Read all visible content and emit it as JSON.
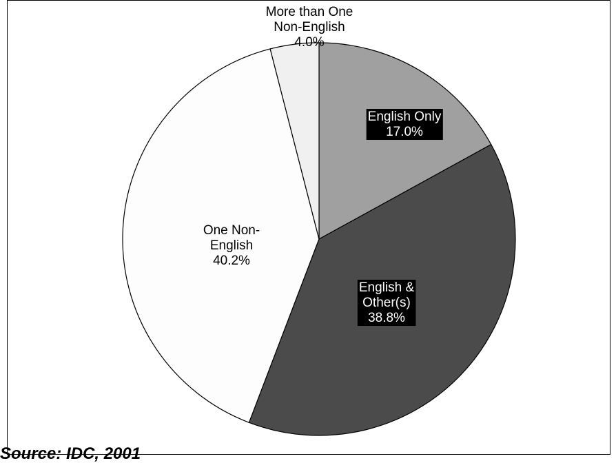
{
  "chart_data": {
    "type": "pie",
    "title": "",
    "slices": [
      {
        "label_lines": [
          "English Only",
          "17.0%"
        ],
        "value": 17.0,
        "color": "#A0A0A0",
        "label_style": "inverse"
      },
      {
        "label_lines": [
          "English &",
          "Other(s)",
          "38.8%"
        ],
        "value": 38.8,
        "color": "#4B4B4B",
        "label_style": "inverse"
      },
      {
        "label_lines": [
          "One Non-",
          "English",
          "40.2%"
        ],
        "value": 40.2,
        "color": "#FDFDFD",
        "label_style": "plain"
      },
      {
        "label_lines": [
          "More than One",
          "Non-English",
          "4.0%"
        ],
        "value": 4.0,
        "color": "#F0F0F0",
        "label_style": "plain"
      }
    ],
    "start_angle_deg": 0,
    "direction": "clockwise",
    "legend": "none"
  },
  "source": "Source: IDC, 2001"
}
